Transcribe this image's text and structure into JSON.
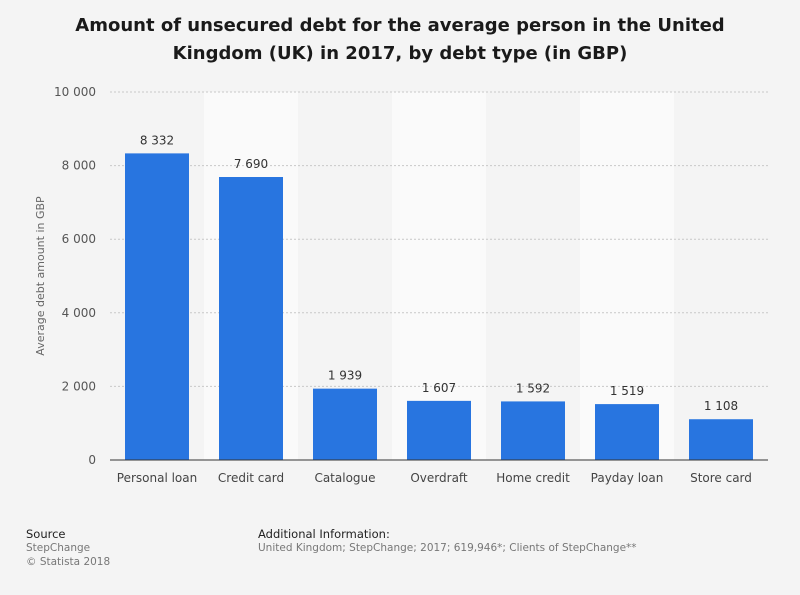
{
  "chart_data": {
    "type": "bar",
    "title": "Amount of unsecured debt for the average person in the United Kingdom (UK) in 2017, by debt type (in GBP)",
    "xlabel": "",
    "ylabel": "Average debt amount in GBP",
    "ylim": [
      0,
      10000
    ],
    "yticks": [
      "0",
      "2 000",
      "4 000",
      "6 000",
      "8 000",
      "10 000"
    ],
    "categories": [
      "Personal loan",
      "Credit card",
      "Catalogue",
      "Overdraft",
      "Home credit",
      "Payday loan",
      "Store card"
    ],
    "values": [
      8332,
      7690,
      1939,
      1607,
      1592,
      1519,
      1108
    ],
    "value_labels": [
      "8 332",
      "7 690",
      "1 939",
      "1 607",
      "1 592",
      "1 519",
      "1 108"
    ],
    "grid": true,
    "bar_color": "#2875e0"
  },
  "footer": {
    "source_title": "Source",
    "source_name": "StepChange",
    "copyright": "© Statista 2018",
    "info_title": "Additional Information:",
    "info_text": "United Kingdom; StepChange; 2017; 619,946*; Clients of StepChange**"
  }
}
